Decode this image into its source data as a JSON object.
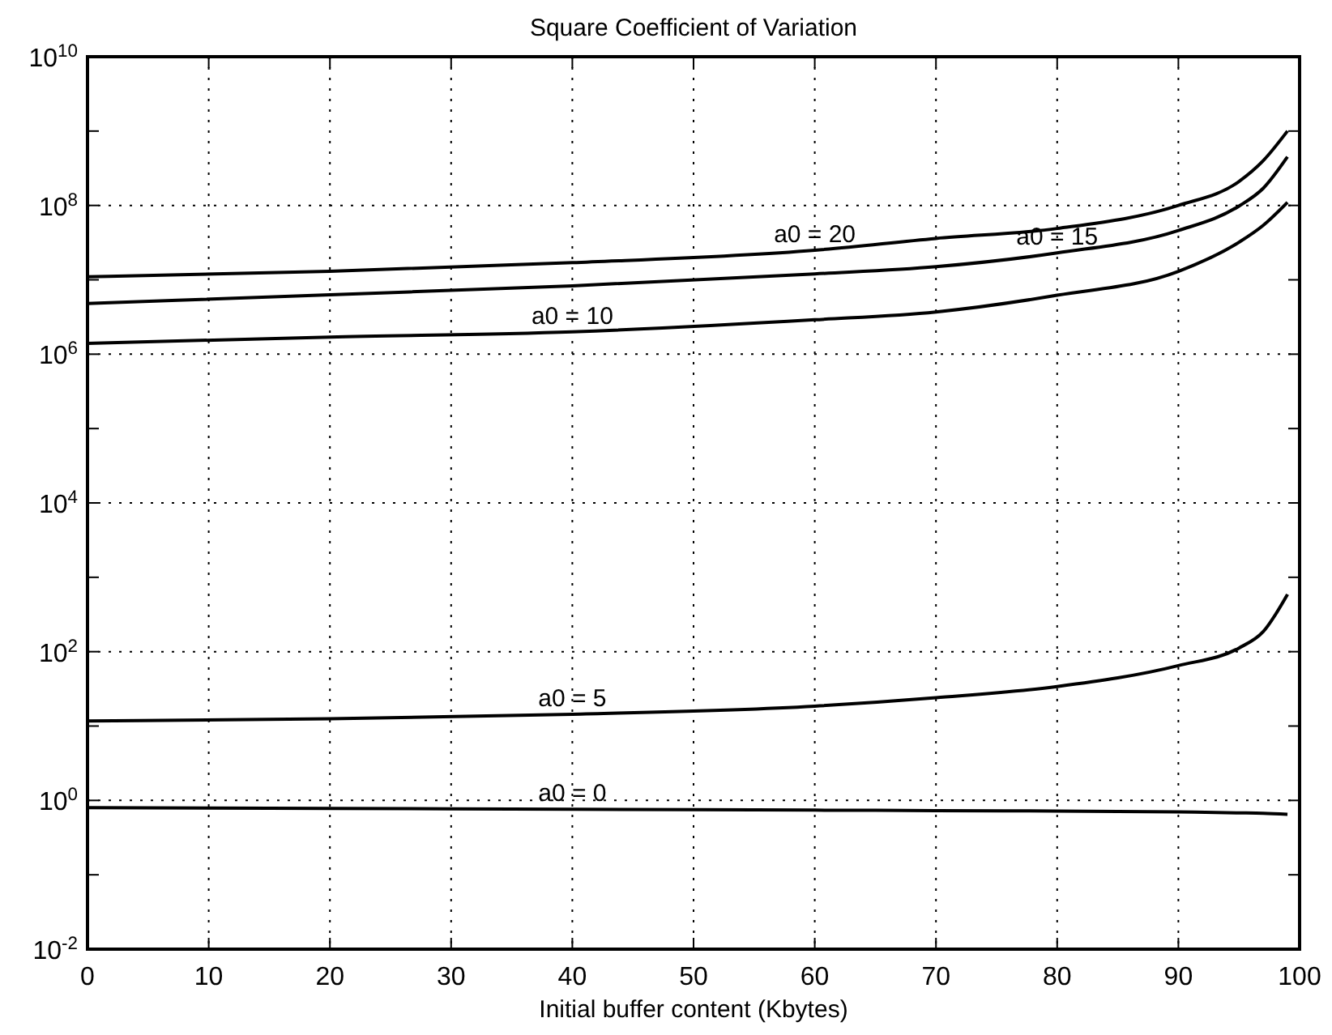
{
  "chart_data": {
    "type": "line",
    "title": "Square Coefficient of Variation",
    "xlabel": "Initial buffer content (Kbytes)",
    "log": "y",
    "grid": true,
    "marker": "none",
    "line_style": "solid",
    "xlim": [
      0,
      100
    ],
    "xticks": [
      0,
      10,
      20,
      30,
      40,
      50,
      60,
      70,
      80,
      90,
      100
    ],
    "ylim": [
      0.01,
      10000000000
    ],
    "yticks": [
      {
        "value": 0.01,
        "label": "10$^{-2}$"
      },
      {
        "value": 0.1,
        "label": null
      },
      {
        "value": 1,
        "label": "10$^{0}$"
      },
      {
        "value": 10,
        "label": null
      },
      {
        "value": 100,
        "label": "10$^{2}$"
      },
      {
        "value": 1000,
        "label": null
      },
      {
        "value": 10000,
        "label": "10$^{4}$"
      },
      {
        "value": 100000,
        "label": null
      },
      {
        "value": 1000000,
        "label": "10$^{6}$"
      },
      {
        "value": 10000000,
        "label": null
      },
      {
        "value": 100000000,
        "label": "10$^{8}$"
      },
      {
        "value": 1000000000,
        "label": null
      },
      {
        "value": 10000000000,
        "label": "10$^{10}$"
      }
    ],
    "x": [
      0,
      20,
      40,
      60,
      70,
      80,
      90,
      95,
      97,
      99
    ],
    "series": [
      {
        "name": "a0 = 20",
        "color": "#000000",
        "values": [
          11000000,
          13000000,
          17000000,
          25000000,
          36000000,
          49000000,
          100000000,
          210000000,
          400000000,
          1000000000
        ]
      },
      {
        "name": "a0 = 15",
        "color": "#000000",
        "values": [
          4800000,
          6300000,
          8300000,
          12000000,
          15000000,
          23000000,
          46000000,
          98000000,
          170000000,
          450000000
        ]
      },
      {
        "name": "a0 = 10",
        "color": "#000000",
        "values": [
          1400000,
          1700000,
          2000000,
          2900000,
          3700000,
          6200000,
          13000000,
          32000000,
          54000000,
          110000000
        ]
      },
      {
        "name": "a0 = 5",
        "color": "#000000",
        "values": [
          11.7,
          12.5,
          14.4,
          18.5,
          24,
          34,
          65,
          112,
          186,
          590
        ]
      },
      {
        "name": "a0 = 0",
        "color": "#000000",
        "values": [
          0.8,
          0.78,
          0.76,
          0.74,
          0.73,
          0.72,
          0.7,
          0.68,
          0.67,
          0.65
        ]
      }
    ]
  }
}
